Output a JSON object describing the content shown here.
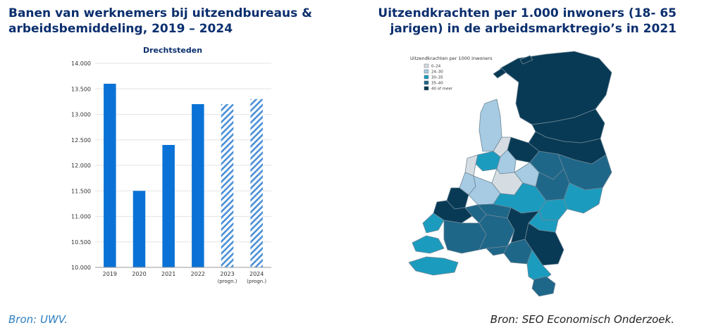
{
  "left_panel": {
    "title": "Banen van werknemers bij uitzendbureaus & arbeidsbemiddeling, 2019 – 2024",
    "source": "Bron: UWV."
  },
  "right_panel": {
    "title": "Uitzendkrachten per 1.000 inwoners (18- 65 jarigen) in de arbeidsmarktregio’s in 2021",
    "source": "Bron: SEO Economisch Onderzoek."
  },
  "chart_data": [
    {
      "type": "bar",
      "title": "Drechtsteden",
      "categories": [
        "2019",
        "2020",
        "2021",
        "2022",
        "2023",
        "2024"
      ],
      "category_sublabels": [
        "",
        "",
        "",
        "",
        "(progn.)",
        "(progn.)"
      ],
      "values": [
        13600,
        11500,
        12400,
        13200,
        13200,
        13300
      ],
      "forecast": [
        false,
        false,
        false,
        false,
        true,
        true
      ],
      "ylim": [
        10000,
        14000
      ],
      "yticks": [
        "10.000",
        "10.500",
        "11.000",
        "11.500",
        "12.000",
        "12.500",
        "13.000",
        "13.500",
        "14.000"
      ],
      "grid": true,
      "colors": {
        "bar": "#0a72d6",
        "forecast_stripe": "#4a8fd6",
        "grid": "#e3e3e3",
        "axis": "#999999"
      }
    },
    {
      "type": "choropleth",
      "legend_title": "Uitzendkrachten per 1000 inwoners",
      "legend": [
        {
          "label": "0–24",
          "color": "#d5dde3"
        },
        {
          "label": "24–30",
          "color": "#a6cbe2"
        },
        {
          "label": "30–35",
          "color": "#1b9cbf"
        },
        {
          "label": "35–40",
          "color": "#1f6789"
        },
        {
          "label": "40 of meer",
          "color": "#083a55"
        }
      ]
    }
  ]
}
